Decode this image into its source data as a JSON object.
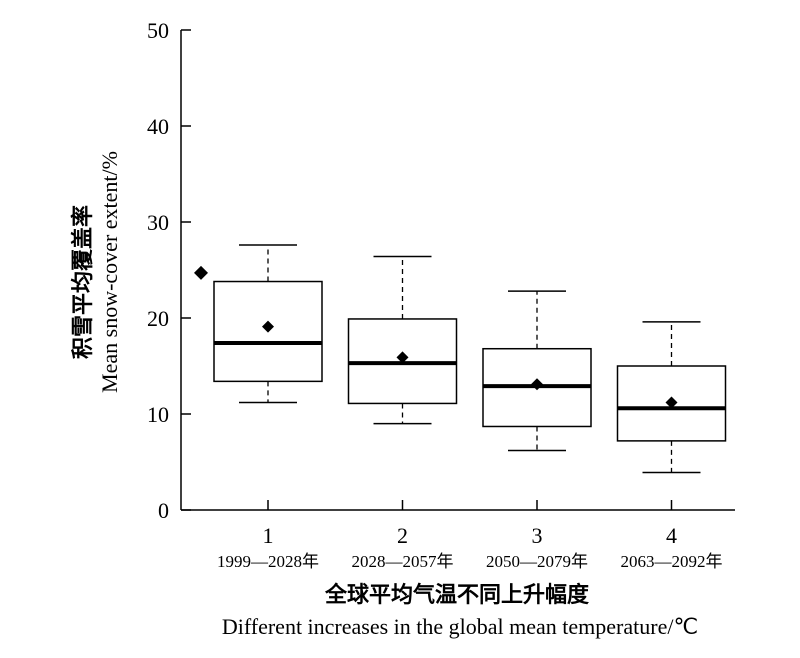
{
  "chart_data": {
    "type": "box",
    "title": "",
    "ylabel_zh": "积雪平均覆盖率",
    "ylabel_en": "Mean snow-cover extent/%",
    "xlabel_zh": "全球平均气温不同上升幅度",
    "xlabel_en": "Different increases in the global mean temperature/℃",
    "ylim": [
      0,
      50
    ],
    "yticks": [
      0,
      10,
      20,
      30,
      40,
      50
    ],
    "categories": [
      "1",
      "2",
      "3",
      "4"
    ],
    "periods": [
      "1999—2028年",
      "2028—2057年",
      "2050—2079年",
      "2063—2092年"
    ],
    "boxes": [
      {
        "whisker_low": 11.2,
        "q1": 13.4,
        "median": 17.4,
        "q3": 23.8,
        "whisker_high": 27.6,
        "mean": 19.1,
        "outliers": [
          24.7
        ]
      },
      {
        "whisker_low": 9.0,
        "q1": 11.1,
        "median": 15.3,
        "q3": 19.9,
        "whisker_high": 26.4,
        "mean": 15.9,
        "outliers": []
      },
      {
        "whisker_low": 6.2,
        "q1": 8.7,
        "median": 12.9,
        "q3": 16.8,
        "whisker_high": 22.8,
        "mean": 13.1,
        "outliers": []
      },
      {
        "whisker_low": 3.9,
        "q1": 7.2,
        "median": 10.6,
        "q3": 15.0,
        "whisker_high": 19.6,
        "mean": 11.2,
        "outliers": []
      }
    ],
    "grid": false,
    "legend": "none"
  }
}
